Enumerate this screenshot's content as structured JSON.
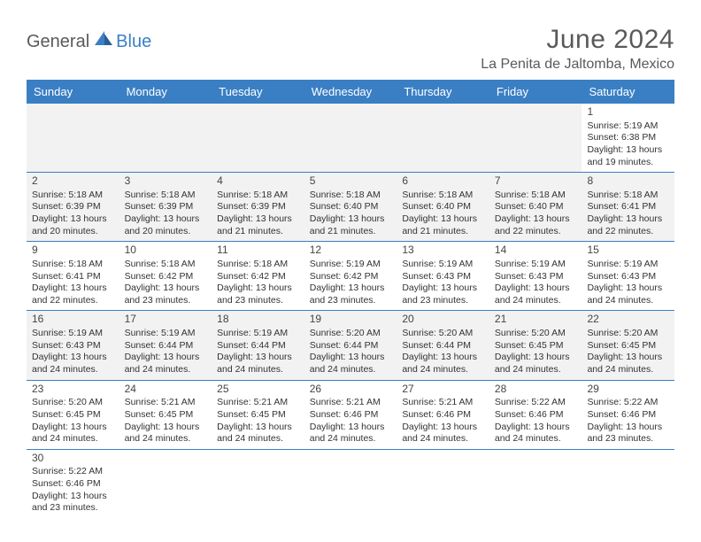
{
  "logo": {
    "general": "General",
    "blue": "Blue"
  },
  "title": "June 2024",
  "location": "La Penita de Jaltomba, Mexico",
  "columns": [
    "Sunday",
    "Monday",
    "Tuesday",
    "Wednesday",
    "Thursday",
    "Friday",
    "Saturday"
  ],
  "colors": {
    "header_bg": "#3a7fc4",
    "header_text": "#ffffff",
    "row_alt_bg": "#f2f2f2",
    "border": "#3a7fc4",
    "title_color": "#5a5a5a",
    "body_text": "#333333"
  },
  "weeks": [
    [
      null,
      null,
      null,
      null,
      null,
      null,
      {
        "n": "1",
        "sr": "5:19 AM",
        "ss": "6:38 PM",
        "dl1": "13 hours",
        "dl2": "and 19 minutes."
      }
    ],
    [
      {
        "n": "2",
        "sr": "5:18 AM",
        "ss": "6:39 PM",
        "dl1": "13 hours",
        "dl2": "and 20 minutes."
      },
      {
        "n": "3",
        "sr": "5:18 AM",
        "ss": "6:39 PM",
        "dl1": "13 hours",
        "dl2": "and 20 minutes."
      },
      {
        "n": "4",
        "sr": "5:18 AM",
        "ss": "6:39 PM",
        "dl1": "13 hours",
        "dl2": "and 21 minutes."
      },
      {
        "n": "5",
        "sr": "5:18 AM",
        "ss": "6:40 PM",
        "dl1": "13 hours",
        "dl2": "and 21 minutes."
      },
      {
        "n": "6",
        "sr": "5:18 AM",
        "ss": "6:40 PM",
        "dl1": "13 hours",
        "dl2": "and 21 minutes."
      },
      {
        "n": "7",
        "sr": "5:18 AM",
        "ss": "6:40 PM",
        "dl1": "13 hours",
        "dl2": "and 22 minutes."
      },
      {
        "n": "8",
        "sr": "5:18 AM",
        "ss": "6:41 PM",
        "dl1": "13 hours",
        "dl2": "and 22 minutes."
      }
    ],
    [
      {
        "n": "9",
        "sr": "5:18 AM",
        "ss": "6:41 PM",
        "dl1": "13 hours",
        "dl2": "and 22 minutes."
      },
      {
        "n": "10",
        "sr": "5:18 AM",
        "ss": "6:42 PM",
        "dl1": "13 hours",
        "dl2": "and 23 minutes."
      },
      {
        "n": "11",
        "sr": "5:18 AM",
        "ss": "6:42 PM",
        "dl1": "13 hours",
        "dl2": "and 23 minutes."
      },
      {
        "n": "12",
        "sr": "5:19 AM",
        "ss": "6:42 PM",
        "dl1": "13 hours",
        "dl2": "and 23 minutes."
      },
      {
        "n": "13",
        "sr": "5:19 AM",
        "ss": "6:43 PM",
        "dl1": "13 hours",
        "dl2": "and 23 minutes."
      },
      {
        "n": "14",
        "sr": "5:19 AM",
        "ss": "6:43 PM",
        "dl1": "13 hours",
        "dl2": "and 24 minutes."
      },
      {
        "n": "15",
        "sr": "5:19 AM",
        "ss": "6:43 PM",
        "dl1": "13 hours",
        "dl2": "and 24 minutes."
      }
    ],
    [
      {
        "n": "16",
        "sr": "5:19 AM",
        "ss": "6:43 PM",
        "dl1": "13 hours",
        "dl2": "and 24 minutes."
      },
      {
        "n": "17",
        "sr": "5:19 AM",
        "ss": "6:44 PM",
        "dl1": "13 hours",
        "dl2": "and 24 minutes."
      },
      {
        "n": "18",
        "sr": "5:19 AM",
        "ss": "6:44 PM",
        "dl1": "13 hours",
        "dl2": "and 24 minutes."
      },
      {
        "n": "19",
        "sr": "5:20 AM",
        "ss": "6:44 PM",
        "dl1": "13 hours",
        "dl2": "and 24 minutes."
      },
      {
        "n": "20",
        "sr": "5:20 AM",
        "ss": "6:44 PM",
        "dl1": "13 hours",
        "dl2": "and 24 minutes."
      },
      {
        "n": "21",
        "sr": "5:20 AM",
        "ss": "6:45 PM",
        "dl1": "13 hours",
        "dl2": "and 24 minutes."
      },
      {
        "n": "22",
        "sr": "5:20 AM",
        "ss": "6:45 PM",
        "dl1": "13 hours",
        "dl2": "and 24 minutes."
      }
    ],
    [
      {
        "n": "23",
        "sr": "5:20 AM",
        "ss": "6:45 PM",
        "dl1": "13 hours",
        "dl2": "and 24 minutes."
      },
      {
        "n": "24",
        "sr": "5:21 AM",
        "ss": "6:45 PM",
        "dl1": "13 hours",
        "dl2": "and 24 minutes."
      },
      {
        "n": "25",
        "sr": "5:21 AM",
        "ss": "6:45 PM",
        "dl1": "13 hours",
        "dl2": "and 24 minutes."
      },
      {
        "n": "26",
        "sr": "5:21 AM",
        "ss": "6:46 PM",
        "dl1": "13 hours",
        "dl2": "and 24 minutes."
      },
      {
        "n": "27",
        "sr": "5:21 AM",
        "ss": "6:46 PM",
        "dl1": "13 hours",
        "dl2": "and 24 minutes."
      },
      {
        "n": "28",
        "sr": "5:22 AM",
        "ss": "6:46 PM",
        "dl1": "13 hours",
        "dl2": "and 24 minutes."
      },
      {
        "n": "29",
        "sr": "5:22 AM",
        "ss": "6:46 PM",
        "dl1": "13 hours",
        "dl2": "and 23 minutes."
      }
    ],
    [
      {
        "n": "30",
        "sr": "5:22 AM",
        "ss": "6:46 PM",
        "dl1": "13 hours",
        "dl2": "and 23 minutes."
      },
      null,
      null,
      null,
      null,
      null,
      null
    ]
  ]
}
